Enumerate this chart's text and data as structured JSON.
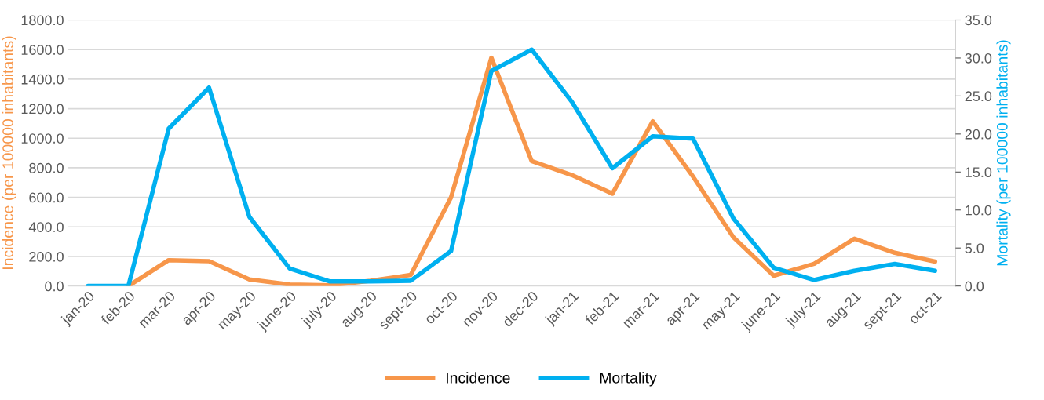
{
  "chart_data": {
    "type": "line",
    "ylabel": "Incidence (per 100000 inhabitants)",
    "y2label": "Mortality (per 100000 inhabitants)",
    "categories": [
      "jan-20",
      "feb-20",
      "mar-20",
      "apr-20",
      "may-20",
      "june-20",
      "july-20",
      "aug-20",
      "sept-20",
      "oct-20",
      "nov-20",
      "dec-20",
      "jan-21",
      "feb-21",
      "mar-21",
      "apr-21",
      "may-21",
      "june-21",
      "july-21",
      "aug-21",
      "sept-21",
      "oct-21"
    ],
    "series": [
      {
        "name": "Incidence",
        "color": "#f7964a",
        "values": [
          null,
          0,
          175,
          168,
          45,
          10,
          5,
          35,
          75,
          600,
          1545,
          845,
          750,
          625,
          1115,
          740,
          330,
          70,
          150,
          320,
          225,
          165
        ]
      },
      {
        "name": "Mortality",
        "color": "#00b0f0",
        "axis": "y2",
        "values": [
          0,
          0,
          20.7,
          26.1,
          9.1,
          2.3,
          0.6,
          0.6,
          0.7,
          4.6,
          28.3,
          31.1,
          24.2,
          15.5,
          19.7,
          19.4,
          8.9,
          2.4,
          0.8,
          2.0,
          2.9,
          2.0
        ]
      }
    ],
    "ylim": [
      0,
      1800
    ],
    "yticks": [
      {
        "value": 0,
        "label": "0.0"
      },
      {
        "value": 200,
        "label": "200.0"
      },
      {
        "value": 400,
        "label": "400.0"
      },
      {
        "value": 600,
        "label": "600.0"
      },
      {
        "value": 800,
        "label": "800.0"
      },
      {
        "value": 1000,
        "label": "1000.0"
      },
      {
        "value": 1200,
        "label": "1200.0"
      },
      {
        "value": 1400,
        "label": "1400.0"
      },
      {
        "value": 1600,
        "label": "1600.0"
      },
      {
        "value": 1800,
        "label": "1800.0"
      }
    ],
    "y2lim": [
      0,
      35
    ],
    "y2ticks": [
      {
        "value": 0,
        "label": "0.0"
      },
      {
        "value": 5,
        "label": "5.0"
      },
      {
        "value": 10,
        "label": "10.0"
      },
      {
        "value": 15,
        "label": "15.0"
      },
      {
        "value": 20,
        "label": "20.0"
      },
      {
        "value": 25,
        "label": "25.0"
      },
      {
        "value": 30,
        "label": "30.0"
      },
      {
        "value": 35,
        "label": "35.0"
      }
    ],
    "grid": "y",
    "legend": "bottom",
    "marker": "none",
    "line_style": "solid"
  }
}
